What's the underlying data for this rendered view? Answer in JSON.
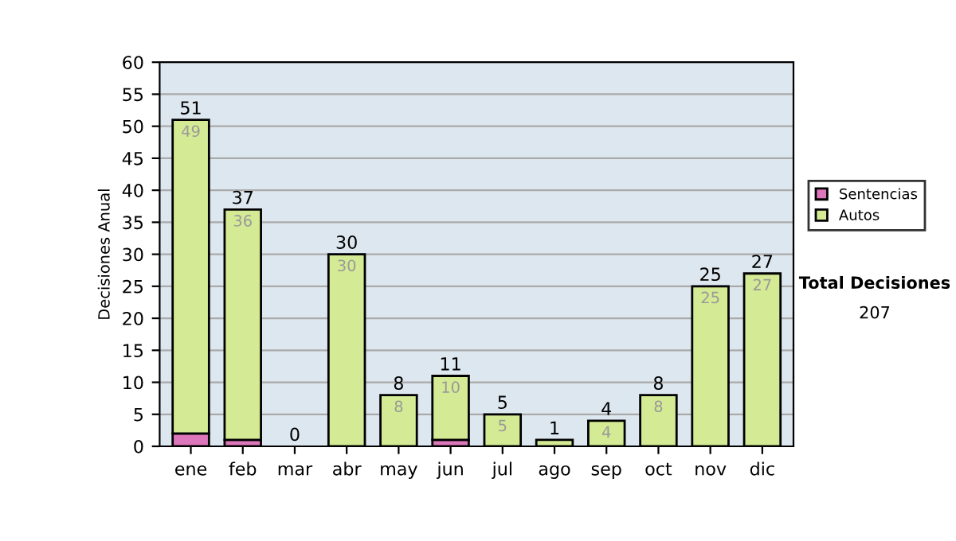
{
  "chart_data": {
    "type": "bar",
    "ylabel": "Decisiones Anual",
    "categories": [
      "ene",
      "feb",
      "mar",
      "abr",
      "may",
      "jun",
      "jul",
      "ago",
      "sep",
      "oct",
      "nov",
      "dic"
    ],
    "stacked": true,
    "series": [
      {
        "name": "Sentencias",
        "color": "#dd77bb",
        "values": [
          2,
          1,
          0,
          0,
          0,
          1,
          0,
          0,
          0,
          0,
          0,
          0
        ]
      },
      {
        "name": "Autos",
        "color": "#d4ea94",
        "values": [
          49,
          36,
          0,
          30,
          8,
          10,
          5,
          1,
          4,
          8,
          25,
          27
        ],
        "value_labels": [
          "49",
          "36",
          null,
          "30",
          "8",
          "10",
          "5",
          null,
          "4",
          "8",
          "25",
          "27"
        ]
      }
    ],
    "totals": [
      "51",
      "37",
      "0",
      "30",
      "8",
      "11",
      "5",
      "1",
      "4",
      "8",
      "25",
      "27"
    ],
    "ylim": [
      0,
      60
    ],
    "yticks": [
      0,
      5,
      10,
      15,
      20,
      25,
      30,
      35,
      40,
      45,
      50,
      55,
      60
    ],
    "grid": "y",
    "legend": "right",
    "annotations": [
      "Total Decisiones",
      "207"
    ]
  }
}
